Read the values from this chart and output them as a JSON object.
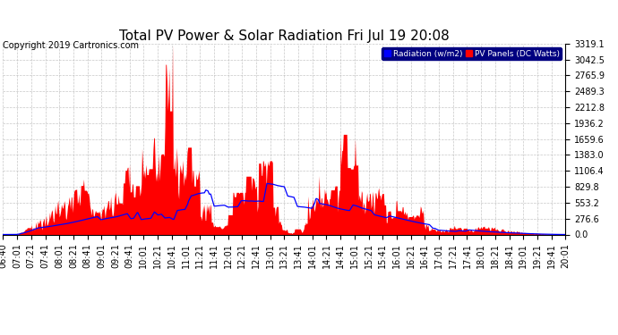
{
  "title": "Total PV Power & Solar Radiation Fri Jul 19 20:08",
  "copyright": "Copyright 2019 Cartronics.com",
  "legend_labels": [
    "Radiation (w/m2)",
    "PV Panels (DC Watts)"
  ],
  "legend_colors": [
    "#0000ff",
    "#ff0000"
  ],
  "y_ticks": [
    0.0,
    276.6,
    553.2,
    829.8,
    1106.4,
    1383.0,
    1659.6,
    1936.2,
    2212.8,
    2489.3,
    2765.9,
    3042.5,
    3319.1
  ],
  "y_max": 3319.1,
  "background_color": "#ffffff",
  "plot_bg_color": "#ffffff",
  "grid_color": "#b0b0b0",
  "fill_color_pv": "#ff0000",
  "line_color_radiation": "#0000ff",
  "title_fontsize": 11,
  "copyright_fontsize": 7,
  "tick_fontsize": 7
}
